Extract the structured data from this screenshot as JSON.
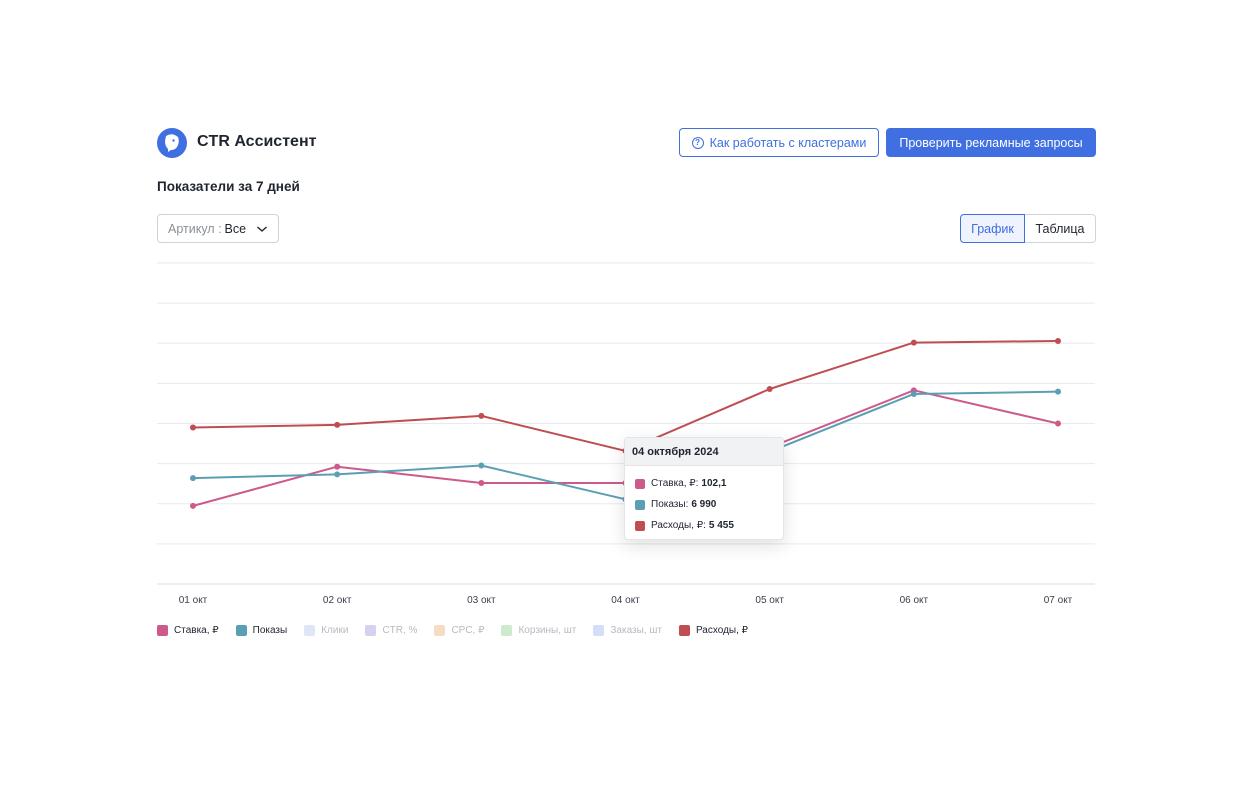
{
  "header": {
    "app_title": "CTR Ассистент",
    "help_button": "Как работать с кластерами",
    "primary_button": "Проверить рекламные запросы"
  },
  "section_title": "Показатели за 7 дней",
  "filter": {
    "label": "Артикул :",
    "value": "Все"
  },
  "view_toggle": {
    "chart": "График",
    "table": "Таблица",
    "active": "chart"
  },
  "colors": {
    "accent": "#3f6fe0",
    "stavka": "#cc5a8a",
    "pokazy": "#5b9fb5",
    "raskhody": "#bf4d52"
  },
  "chart_data": {
    "type": "line",
    "categories": [
      "01 окт",
      "02 окт",
      "03 окт",
      "04 окт",
      "05 окт",
      "06 окт",
      "07 окт"
    ],
    "series": [
      {
        "name": "Ставка, ₽",
        "color": "#cc5a8a",
        "values": [
          58.4,
          87.7,
          75.5,
          75.5,
          102.1,
          144.8,
          120.0
        ]
      },
      {
        "name": "Показы",
        "color": "#5b9fb5",
        "values": [
          79.2,
          82.0,
          88.6,
          63.3,
          98.9,
          142.1,
          143.8
        ]
      },
      {
        "name": "Расходы, ₽",
        "color": "#bf4d52",
        "values": [
          117.0,
          119.0,
          125.7,
          99.5,
          145.8,
          180.5,
          181.7
        ]
      }
    ],
    "ylim": [
      0,
      240
    ],
    "grid": true,
    "tooltip": {
      "date": "04 октября 2024",
      "rows": [
        {
          "label": "Ставка, ₽:",
          "value": "102,1",
          "color": "#cc5a8a"
        },
        {
          "label": "Показы:",
          "value": "6 990",
          "color": "#5b9fb5"
        },
        {
          "label": "Расходы, ₽:",
          "value": "5 455",
          "color": "#bf4d52"
        }
      ]
    }
  },
  "legend": [
    {
      "label": "Ставка, ₽",
      "color": "#cc5a8a",
      "active": true
    },
    {
      "label": "Показы",
      "color": "#5b9fb5",
      "active": true
    },
    {
      "label": "Клики",
      "color": "#dfe6f7",
      "active": false
    },
    {
      "label": "CTR, %",
      "color": "#d6d1ef",
      "active": false
    },
    {
      "label": "CPC, ₽",
      "color": "#f6dcc2",
      "active": false
    },
    {
      "label": "Корзины, шт",
      "color": "#cfe9cf",
      "active": false
    },
    {
      "label": "Заказы, шт",
      "color": "#d4def6",
      "active": false
    },
    {
      "label": "Расходы, ₽",
      "color": "#bf4d52",
      "active": true
    }
  ]
}
